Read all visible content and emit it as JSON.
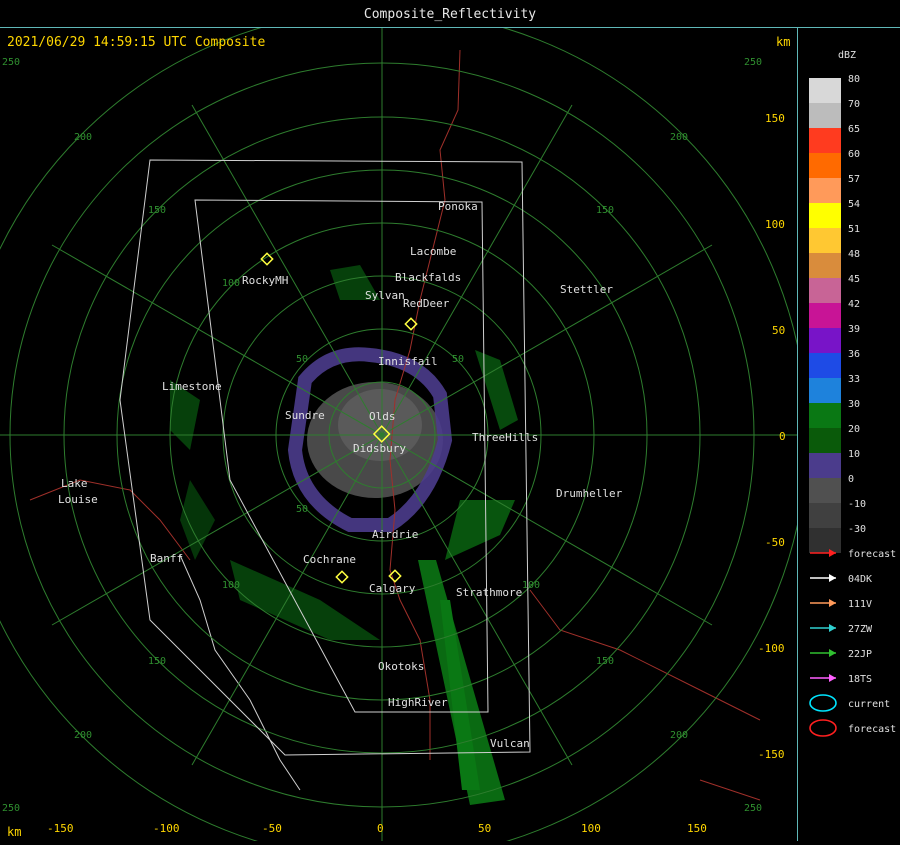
{
  "window": {
    "title": "Composite_Reflectivity"
  },
  "header": {
    "timestamp": "2021/06/29 14:59:15 UTC Composite",
    "km_label": "km"
  },
  "axes": {
    "km_label": "km",
    "x_ticks": [
      "-150",
      "-100",
      "-50",
      "0",
      "50",
      "100",
      "150"
    ],
    "y_ticks": [
      "150",
      "100",
      "50",
      "0",
      "-50",
      "-100",
      "-150"
    ]
  },
  "range_rings": {
    "labels": [
      "50",
      "100",
      "150",
      "200",
      "250"
    ]
  },
  "cities": [
    "Ponoka",
    "Lacombe",
    "Blackfalds",
    "Sylvan",
    "RedDeer",
    "Stettler",
    "RockyMH",
    "Innisfail",
    "Limestone",
    "Sundre",
    "Olds",
    "Didsbury",
    "ThreeHills",
    "Drumheller",
    "Lake",
    "Louise",
    "Airdrie",
    "Cochrane",
    "Banff",
    "Calgary",
    "Strathmore",
    "Okotoks",
    "HighRiver",
    "Vulcan"
  ],
  "legend": {
    "unit": "dBZ",
    "scale": [
      {
        "label": "80",
        "color": "#d8d8d8"
      },
      {
        "label": "70",
        "color": "#bcbcbc"
      },
      {
        "label": "65",
        "color": "#ff3b1f"
      },
      {
        "label": "60",
        "color": "#ff6a00"
      },
      {
        "label": "57",
        "color": "#ff9a5a"
      },
      {
        "label": "54",
        "color": "#ffff00"
      },
      {
        "label": "51",
        "color": "#ffc832"
      },
      {
        "label": "48",
        "color": "#d98c3c"
      },
      {
        "label": "45",
        "color": "#c86496"
      },
      {
        "label": "42",
        "color": "#c81496"
      },
      {
        "label": "39",
        "color": "#7814c8"
      },
      {
        "label": "36",
        "color": "#1e4be6"
      },
      {
        "label": "33",
        "color": "#1e82dc"
      },
      {
        "label": "30",
        "color": "#0a7814"
      },
      {
        "label": "20",
        "color": "#0a5a0a"
      },
      {
        "label": "10",
        "color": "#4b3c8c"
      },
      {
        "label": "0",
        "color": "#505050"
      },
      {
        "label": "-10",
        "color": "#404040"
      },
      {
        "label": "-30",
        "color": "#303030"
      }
    ],
    "tracks": [
      {
        "label": "forecast",
        "color": "#ff2020",
        "kind": "arrow"
      },
      {
        "label": "04DK",
        "color": "#ffffff",
        "kind": "arrow"
      },
      {
        "label": "111V",
        "color": "#ff9a5a",
        "kind": "arrow"
      },
      {
        "label": "27ZW",
        "color": "#30d0d0",
        "kind": "arrow"
      },
      {
        "label": "22JP",
        "color": "#30c030",
        "kind": "arrow"
      },
      {
        "label": "18TS",
        "color": "#ff60ff",
        "kind": "arrow"
      },
      {
        "label": "current",
        "color": "#00e5ff",
        "kind": "ellipse"
      },
      {
        "label": "forecast",
        "color": "#ff2020",
        "kind": "ellipse"
      }
    ]
  }
}
